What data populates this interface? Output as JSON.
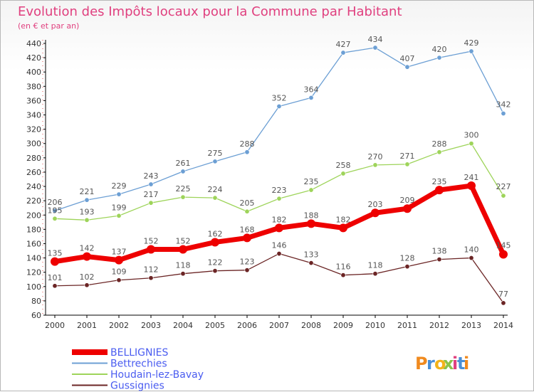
{
  "chart_data": {
    "type": "line",
    "title": "Evolution des Impôts locaux pour la Commune par Habitant",
    "subtitle": "(en € et par an)",
    "x": [
      "2000",
      "2001",
      "2002",
      "2003",
      "2004",
      "2005",
      "2006",
      "2007",
      "2008",
      "2009",
      "2010",
      "2011",
      "2012",
      "2013",
      "2014"
    ],
    "yticks": [
      60,
      80,
      100,
      120,
      140,
      160,
      180,
      200,
      220,
      240,
      260,
      280,
      300,
      320,
      340,
      360,
      380,
      400,
      420,
      440
    ],
    "ylim": [
      60,
      440
    ],
    "grid": false,
    "legend_position": "bottom-left",
    "series": [
      {
        "name": "BELLIGNIES",
        "color": "#ee0000",
        "highlight": true,
        "values": [
          135,
          142,
          137,
          152,
          152,
          162,
          168,
          182,
          188,
          182,
          203,
          209,
          235,
          241,
          145
        ]
      },
      {
        "name": "Bettrechies",
        "color": "#6c9fd4",
        "highlight": false,
        "values": [
          206,
          221,
          229,
          243,
          261,
          275,
          288,
          352,
          364,
          427,
          434,
          407,
          420,
          429,
          342
        ]
      },
      {
        "name": "Houdain-lez-Bavay",
        "color": "#9ed45a",
        "highlight": false,
        "values": [
          195,
          193,
          199,
          217,
          225,
          224,
          205,
          223,
          235,
          258,
          270,
          271,
          288,
          300,
          227
        ]
      },
      {
        "name": "Gussignies",
        "color": "#6b2525",
        "highlight": false,
        "values": [
          101,
          102,
          109,
          112,
          118,
          122,
          123,
          146,
          133,
          116,
          118,
          128,
          138,
          140,
          77
        ]
      }
    ]
  },
  "brand": {
    "logo_text": "Proxiti",
    "letter_colors": [
      "#f08a1e",
      "#4a8fd6",
      "#f2b31a",
      "#8bc34a",
      "#e0407f",
      "#4a8fd6",
      "#f08a1e"
    ]
  }
}
